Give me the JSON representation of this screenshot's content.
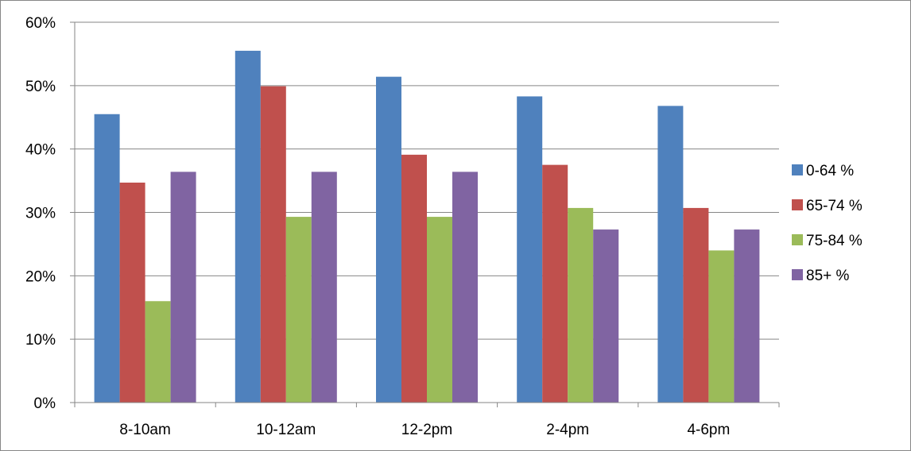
{
  "chart_data": {
    "type": "bar",
    "categories": [
      "8-10am",
      "10-12am",
      "12-2pm",
      "2-4pm",
      "4-6pm"
    ],
    "series": [
      {
        "name": "0-64 %",
        "color": "#4F81BD",
        "values": [
          45.5,
          55.5,
          51.4,
          48.3,
          46.8
        ]
      },
      {
        "name": "65-74 %",
        "color": "#C0504D",
        "values": [
          34.7,
          49.9,
          39.1,
          37.5,
          30.7
        ]
      },
      {
        "name": "75-84 %",
        "color": "#9BBB59",
        "values": [
          16.0,
          29.3,
          29.3,
          30.7,
          24.0
        ]
      },
      {
        "name": "85+ %",
        "color": "#8064A2",
        "values": [
          36.4,
          36.4,
          36.4,
          27.3,
          27.3
        ]
      }
    ],
    "yticks": [
      "0%",
      "10%",
      "20%",
      "30%",
      "40%",
      "50%",
      "60%"
    ],
    "ylim": [
      0,
      60
    ],
    "grid": true,
    "legend_position": "right",
    "title": "",
    "xlabel": "",
    "ylabel": ""
  }
}
